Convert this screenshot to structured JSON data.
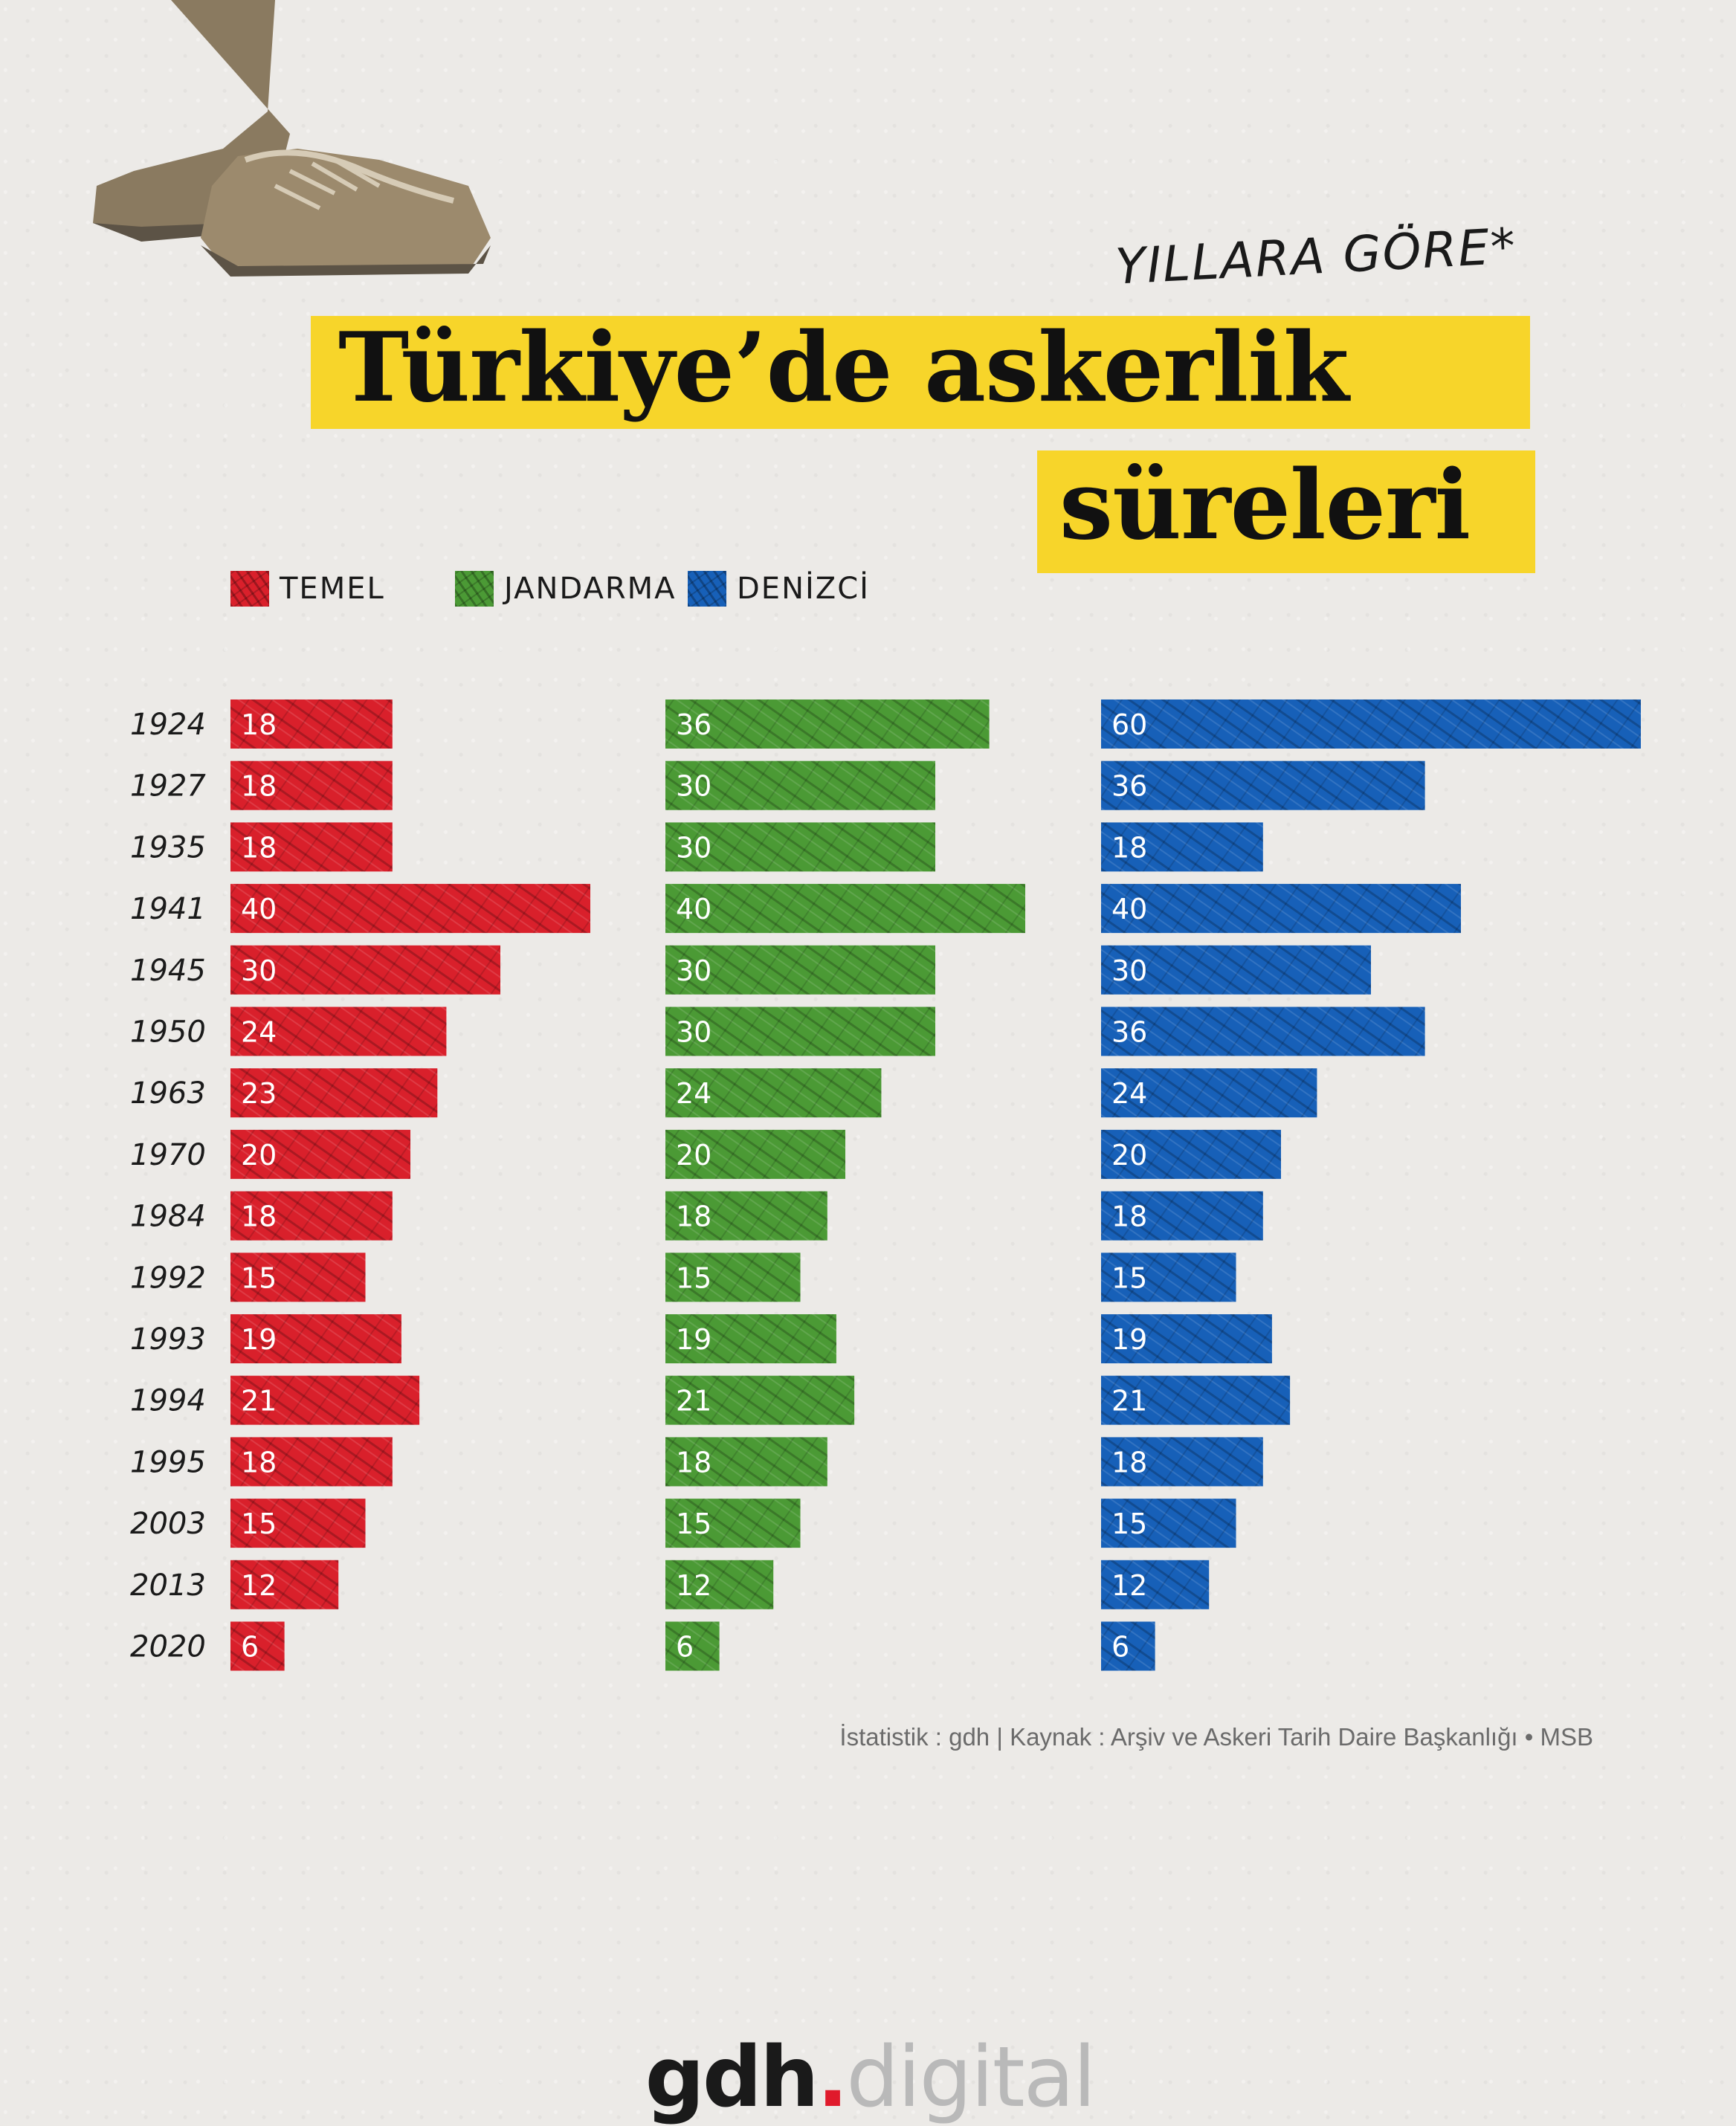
{
  "subtitle": "YILLARA GÖRE*",
  "title_line1": "Türkiye’de askerlik",
  "title_line2": "süreleri",
  "source": "İstatistik : gdh | Kaynak : Arşiv ve Askeri Tarih Daire Başkanlığı • MSB",
  "logo": {
    "brand": "gdh",
    "dot": ".",
    "suffix": "digital"
  },
  "colors": {
    "temel": "#d9202b",
    "jandarma": "#4b9a35",
    "denizci": "#1760b8",
    "title_band": "#f7d52a"
  },
  "chart_data": {
    "type": "bar",
    "orientation": "horizontal",
    "categories": [
      "1924",
      "1927",
      "1935",
      "1941",
      "1945",
      "1950",
      "1963",
      "1970",
      "1984",
      "1992",
      "1993",
      "1994",
      "1995",
      "2003",
      "2013",
      "2020"
    ],
    "series": [
      {
        "name": "TEMEL",
        "color": "#d9202b",
        "values": [
          18,
          18,
          18,
          40,
          30,
          24,
          23,
          20,
          18,
          15,
          19,
          21,
          18,
          15,
          12,
          6
        ]
      },
      {
        "name": "JANDARMA",
        "color": "#4b9a35",
        "values": [
          36,
          30,
          30,
          40,
          30,
          30,
          24,
          20,
          18,
          15,
          19,
          21,
          18,
          15,
          12,
          6
        ]
      },
      {
        "name": "DENİZCİ",
        "color": "#1760b8",
        "values": [
          60,
          36,
          18,
          40,
          30,
          36,
          24,
          20,
          18,
          15,
          19,
          21,
          18,
          15,
          12,
          6
        ]
      }
    ],
    "legend": "top"
  }
}
